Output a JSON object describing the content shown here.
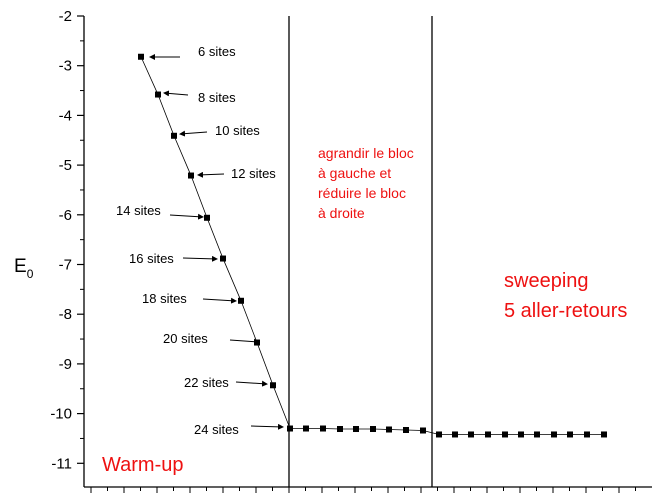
{
  "chart_data": {
    "type": "scatter",
    "ylabel": "E",
    "ylabel_subscript": "0",
    "ylim": [
      -11.5,
      -2
    ],
    "yticks": [
      -2,
      -3,
      -4,
      -5,
      -6,
      -7,
      -8,
      -9,
      -10,
      -11
    ],
    "ytick_labels": [
      "-2",
      "-3",
      "-4",
      "-5",
      "-6",
      "-7",
      "-8",
      "-9",
      "-10",
      "-11"
    ],
    "grid": false,
    "warmup_series": {
      "line": true,
      "points": [
        {
          "label": "6 sites",
          "y": -2.82
        },
        {
          "label": "8 sites",
          "y": -3.58
        },
        {
          "label": "10 sites",
          "y": -4.41
        },
        {
          "label": "12 sites",
          "y": -5.21
        },
        {
          "label": "14 sites",
          "y": -6.06
        },
        {
          "label": "16 sites",
          "y": -6.88
        },
        {
          "label": "18 sites",
          "y": -7.73
        },
        {
          "label": "20 sites",
          "y": -8.57
        },
        {
          "label": "22 sites",
          "y": -9.43
        },
        {
          "label": "24 sites",
          "y": -10.3
        }
      ]
    },
    "grow_series": {
      "y": [
        -10.3,
        -10.3,
        -10.31,
        -10.31,
        -10.31,
        -10.32,
        -10.33,
        -10.34
      ]
    },
    "sweep_series": {
      "y": [
        -10.42,
        -10.42,
        -10.42,
        -10.42,
        -10.42,
        -10.42,
        -10.42,
        -10.42,
        -10.42,
        -10.42,
        -10.42
      ]
    },
    "annotations": {
      "warmup": "Warm-up",
      "grow_lines": [
        "agrandir le bloc",
        "à gauche  et",
        "réduire le bloc",
        "à droite"
      ],
      "sweep_lines": [
        "sweeping",
        "5 aller-retours"
      ]
    },
    "colors": {
      "annotation": "#ee1111",
      "axis": "#000000",
      "markers": "#000000"
    }
  }
}
